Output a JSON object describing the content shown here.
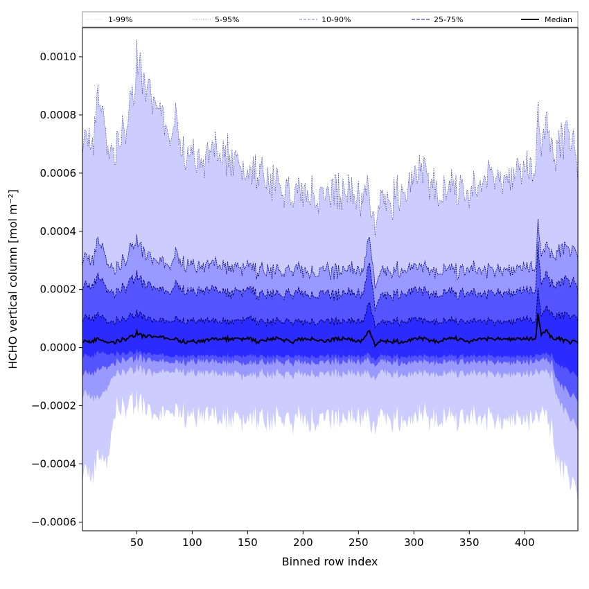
{
  "chart_data": {
    "type": "area",
    "title": "",
    "xlabel": "Binned row index",
    "ylabel": "HCHO vertical column [mol m⁻²]",
    "xlim": [
      1,
      448
    ],
    "ylim": [
      -0.00063,
      0.0011
    ],
    "xticks": [
      50,
      100,
      150,
      200,
      250,
      300,
      350,
      400
    ],
    "xtick_labels": [
      "50",
      "100",
      "150",
      "200",
      "250",
      "300",
      "350",
      "400"
    ],
    "yticks": [
      -0.0006,
      -0.0004,
      -0.0002,
      0.0,
      0.0002,
      0.0004,
      0.0006,
      0.0008,
      0.001
    ],
    "ytick_labels": [
      "−0.0006",
      "−0.0004",
      "−0.0002",
      "0.0000",
      "0.0002",
      "0.0004",
      "0.0006",
      "0.0008",
      "0.0010"
    ],
    "legend_position": "top",
    "colors": {
      "band_1_99": "#ccccff",
      "band_5_95": "#9999ff",
      "band_10_90": "#5555ff",
      "band_25_75": "#2b2bff",
      "line_5_95": "#00007a",
      "line_10_90": "#000066",
      "line_25_75": "#000050",
      "median": "#000000"
    },
    "legend": [
      {
        "label": "1-99%",
        "color": "#c8c8c8",
        "dash": "1,2",
        "width": 0.8
      },
      {
        "label": "5-95%",
        "color": "#6b6bc8",
        "dash": "1,1.5",
        "width": 0.8
      },
      {
        "label": "10-90%",
        "color": "#7777ee",
        "dash": "4,2",
        "width": 1.0
      },
      {
        "label": "25-75%",
        "color": "#4444dd",
        "dash": "5,2",
        "width": 1.2
      },
      {
        "label": "Median",
        "color": "#000000",
        "dash": "",
        "width": 2.0
      }
    ],
    "percentile_profiles": {
      "x": [
        1,
        10,
        15,
        20,
        25,
        30,
        40,
        48,
        50,
        55,
        60,
        70,
        80,
        85,
        90,
        100,
        110,
        120,
        130,
        140,
        150,
        160,
        170,
        180,
        190,
        200,
        210,
        220,
        230,
        240,
        250,
        255,
        260,
        265,
        270,
        280,
        290,
        300,
        310,
        320,
        330,
        340,
        350,
        360,
        370,
        380,
        390,
        400,
        410,
        412,
        415,
        420,
        425,
        430,
        440,
        448
      ],
      "p99": [
        0.00072,
        0.0007,
        0.00085,
        0.00078,
        0.0007,
        0.00068,
        0.00075,
        0.00088,
        0.001,
        0.00092,
        0.0009,
        0.00085,
        0.00072,
        0.0008,
        0.00068,
        0.00065,
        0.00062,
        0.00068,
        0.00066,
        0.00064,
        0.00058,
        0.0006,
        0.00058,
        0.00055,
        0.00052,
        0.00055,
        0.00054,
        0.00052,
        0.00054,
        0.00053,
        0.0005,
        0.00052,
        0.00054,
        0.00044,
        0.00048,
        0.0005,
        0.00055,
        0.00058,
        0.0006,
        0.00054,
        0.00053,
        0.00055,
        0.00052,
        0.00055,
        0.0006,
        0.00058,
        0.0006,
        0.00062,
        0.0006,
        0.00088,
        0.00062,
        0.0008,
        0.00065,
        0.0007,
        0.00074,
        0.00062
      ],
      "p95": [
        0.00031,
        0.0003,
        0.00036,
        0.00033,
        0.00029,
        0.00027,
        0.0003,
        0.00036,
        0.00037,
        0.00033,
        0.00032,
        0.00031,
        0.00028,
        0.00033,
        0.00029,
        0.00028,
        0.00027,
        0.00029,
        0.00028,
        0.00027,
        0.00028,
        0.00026,
        0.00027,
        0.00026,
        0.00027,
        0.00027,
        0.00026,
        0.00027,
        0.00026,
        0.00027,
        0.00026,
        0.00027,
        0.00039,
        0.00022,
        0.00025,
        0.00026,
        0.00027,
        0.00028,
        0.00027,
        0.00026,
        0.00027,
        0.00026,
        0.00027,
        0.00026,
        0.00027,
        0.00027,
        0.00027,
        0.00028,
        0.00027,
        0.00045,
        0.00029,
        0.00036,
        0.00031,
        0.00033,
        0.00034,
        0.00032
      ],
      "p90": [
        0.00021,
        0.00021,
        0.00024,
        0.00022,
        0.0002,
        0.00019,
        0.00021,
        0.00024,
        0.00025,
        0.00022,
        0.00022,
        0.00021,
        0.00019,
        0.00022,
        0.0002,
        0.00019,
        0.00019,
        0.0002,
        0.00019,
        0.00019,
        0.0002,
        0.00018,
        0.00019,
        0.00018,
        0.00019,
        0.00019,
        0.00018,
        0.00019,
        0.00018,
        0.00019,
        0.00018,
        0.00019,
        0.0003,
        0.00014,
        0.00017,
        0.00018,
        0.00019,
        0.0002,
        0.00019,
        0.00018,
        0.00019,
        0.00018,
        0.00019,
        0.00018,
        0.00019,
        0.00019,
        0.00019,
        0.0002,
        0.00019,
        0.00037,
        0.0002,
        0.00026,
        0.00021,
        0.00022,
        0.00023,
        0.00021
      ],
      "p75": [
        0.0001,
        0.0001,
        0.00011,
        0.0001,
        9e-05,
        9e-05,
        0.0001,
        0.00011,
        0.00012,
        0.00011,
        0.0001,
        0.0001,
        9e-05,
        0.0001,
        9e-05,
        9e-05,
        9e-05,
        9e-05,
        9e-05,
        9e-05,
        0.0001,
        9e-05,
        9e-05,
        9e-05,
        9e-05,
        9e-05,
        9e-05,
        9e-05,
        9e-05,
        9e-05,
        9e-05,
        9e-05,
        0.00016,
        8e-05,
        8e-05,
        9e-05,
        9e-05,
        0.0001,
        9e-05,
        9e-05,
        9e-05,
        9e-05,
        9e-05,
        9e-05,
        9e-05,
        9e-05,
        9e-05,
        0.0001,
        9e-05,
        0.00021,
        0.0001,
        0.00014,
        0.00011,
        0.00011,
        0.00011,
        0.0001
      ],
      "median": [
        2e-05,
        2e-05,
        3e-05,
        2e-05,
        2e-05,
        2e-05,
        3e-05,
        4e-05,
        5e-05,
        4e-05,
        4e-05,
        4e-05,
        3e-05,
        3e-05,
        2e-05,
        2e-05,
        2e-05,
        3e-05,
        3e-05,
        3e-05,
        3e-05,
        2e-05,
        3e-05,
        3e-05,
        2e-05,
        3e-05,
        3e-05,
        2e-05,
        3e-05,
        3e-05,
        2e-05,
        3e-05,
        6e-05,
        1e-05,
        2e-05,
        2e-05,
        2e-05,
        3e-05,
        3e-05,
        2e-05,
        3e-05,
        3e-05,
        2e-05,
        3e-05,
        3e-05,
        3e-05,
        3e-05,
        3e-05,
        3e-05,
        0.00012,
        4e-05,
        6e-05,
        3e-05,
        3e-05,
        2e-05,
        2e-05
      ],
      "p25": [
        -3e-05,
        -3e-05,
        -2e-05,
        -2e-05,
        -2e-05,
        -2e-05,
        -2e-05,
        -2e-05,
        -1e-05,
        -2e-05,
        -2e-05,
        -2e-05,
        -3e-05,
        -3e-05,
        -3e-05,
        -3e-05,
        -3e-05,
        -3e-05,
        -3e-05,
        -3e-05,
        -3e-05,
        -3e-05,
        -3e-05,
        -3e-05,
        -3e-05,
        -3e-05,
        -3e-05,
        -3e-05,
        -3e-05,
        -3e-05,
        -3e-05,
        -3e-05,
        -2e-05,
        -4e-05,
        -3e-05,
        -3e-05,
        -3e-05,
        -3e-05,
        -3e-05,
        -3e-05,
        -3e-05,
        -3e-05,
        -3e-05,
        -3e-05,
        -3e-05,
        -3e-05,
        -3e-05,
        -3e-05,
        -3e-05,
        -2e-05,
        -3e-05,
        -2e-05,
        -3e-05,
        -6e-05,
        -8e-05,
        -0.0001
      ],
      "p10": [
        -9e-05,
        -9e-05,
        -8e-05,
        -7e-05,
        -6e-05,
        -5e-05,
        -4e-05,
        -4e-05,
        -3e-05,
        -4e-05,
        -4e-05,
        -4e-05,
        -5e-05,
        -5e-05,
        -5e-05,
        -5e-05,
        -5e-05,
        -5e-05,
        -5e-05,
        -5e-05,
        -6e-05,
        -5e-05,
        -5e-05,
        -5e-05,
        -5e-05,
        -5e-05,
        -5e-05,
        -5e-05,
        -5e-05,
        -5e-05,
        -5e-05,
        -5e-05,
        -4e-05,
        -6e-05,
        -5e-05,
        -5e-05,
        -5e-05,
        -5e-05,
        -5e-05,
        -5e-05,
        -5e-05,
        -5e-05,
        -5e-05,
        -5e-05,
        -5e-05,
        -5e-05,
        -5e-05,
        -5e-05,
        -5e-05,
        -4e-05,
        -5e-05,
        -4e-05,
        -6e-05,
        -0.00012,
        -0.00016,
        -0.00018
      ],
      "p5": [
        -0.00016,
        -0.00017,
        -0.00018,
        -0.00016,
        -0.00012,
        -9e-05,
        -8e-05,
        -8e-05,
        -7e-05,
        -8e-05,
        -8e-05,
        -8e-05,
        -8e-05,
        -8e-05,
        -8e-05,
        -9e-05,
        -9e-05,
        -9e-05,
        -9e-05,
        -9e-05,
        -0.0001,
        -9e-05,
        -9e-05,
        -9e-05,
        -9e-05,
        -9e-05,
        -9e-05,
        -9e-05,
        -9e-05,
        -9e-05,
        -9e-05,
        -9e-05,
        -9e-05,
        -0.0001,
        -9e-05,
        -9e-05,
        -9e-05,
        -9e-05,
        -9e-05,
        -9e-05,
        -9e-05,
        -9e-05,
        -9e-05,
        -9e-05,
        -9e-05,
        -9e-05,
        -9e-05,
        -9e-05,
        -9e-05,
        -8e-05,
        -9e-05,
        -8e-05,
        -0.0001,
        -0.00018,
        -0.00024,
        -0.00028
      ],
      "p1": [
        -0.00042,
        -0.00045,
        -0.00038,
        -0.0004,
        -0.00035,
        -0.00022,
        -0.0002,
        -0.00019,
        -0.00018,
        -0.0002,
        -0.00021,
        -0.00022,
        -0.00021,
        -0.00022,
        -0.00023,
        -0.00024,
        -0.00025,
        -0.00024,
        -0.00025,
        -0.00024,
        -0.00026,
        -0.00024,
        -0.00025,
        -0.00024,
        -0.00025,
        -0.00024,
        -0.00025,
        -0.00024,
        -0.00025,
        -0.00024,
        -0.00025,
        -0.00024,
        -0.00024,
        -0.00026,
        -0.00024,
        -0.00025,
        -0.00024,
        -0.00025,
        -0.00024,
        -0.00025,
        -0.00024,
        -0.00025,
        -0.00024,
        -0.00025,
        -0.00024,
        -0.00025,
        -0.00024,
        -0.00025,
        -0.00024,
        -0.00023,
        -0.00024,
        -0.00023,
        -0.0003,
        -0.0004,
        -0.00045,
        -0.0005
      ]
    }
  }
}
